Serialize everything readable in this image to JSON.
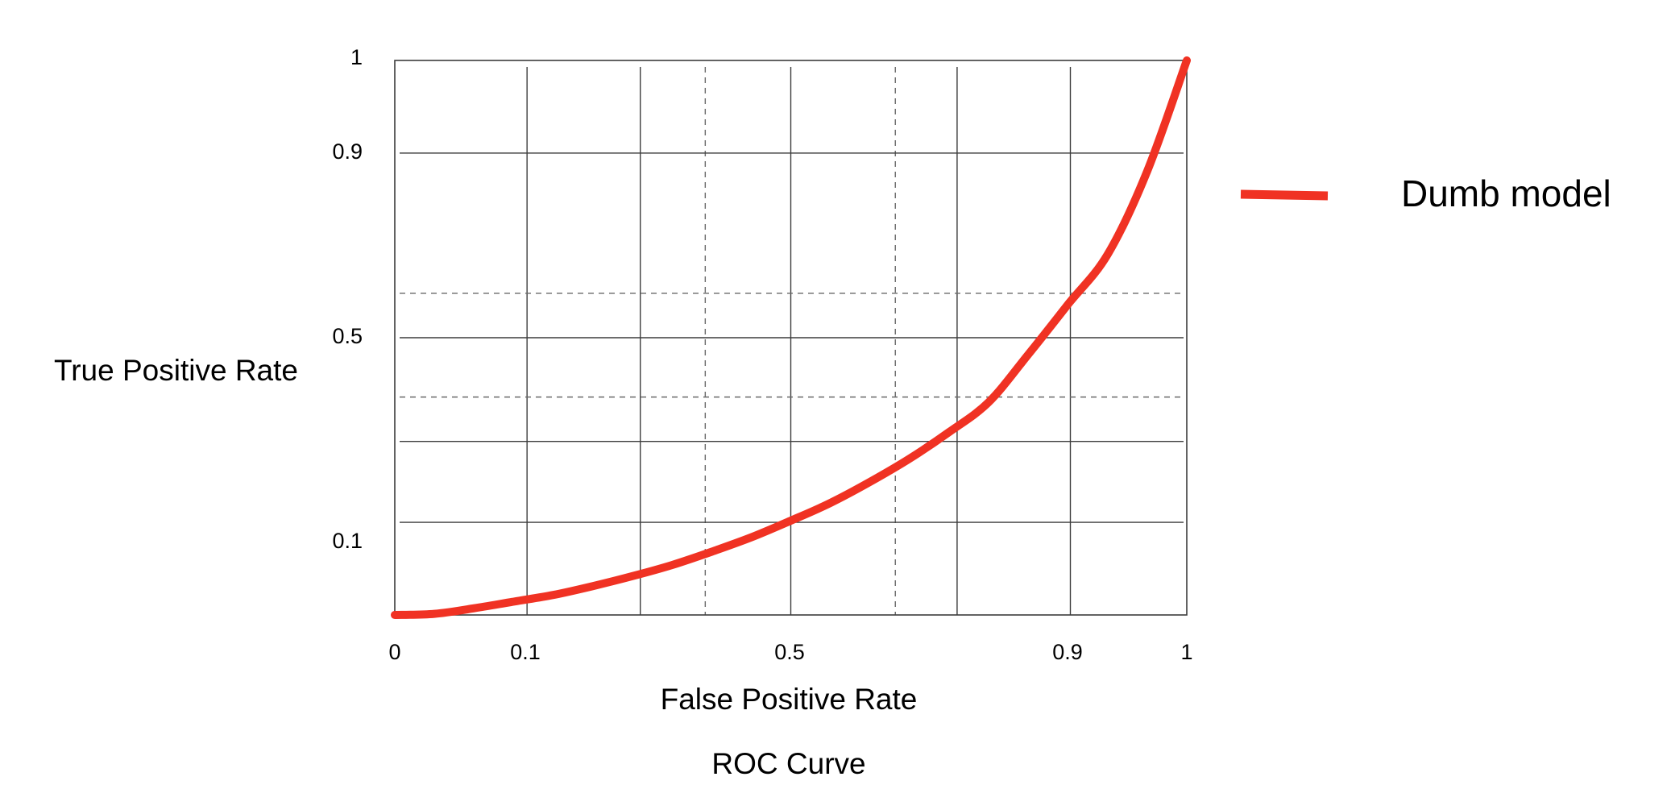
{
  "chart_data": {
    "type": "line",
    "title": "ROC Curve",
    "xlabel": "False Positive Rate",
    "ylabel": "True Positive Rate",
    "xlim": [
      0,
      1
    ],
    "ylim": [
      0,
      1
    ],
    "x_ticks": [
      {
        "value": 0,
        "label": "0"
      },
      {
        "value": 0.1,
        "label": "0.1"
      },
      {
        "value": 0.5,
        "label": "0.5"
      },
      {
        "value": 0.9,
        "label": "0.9"
      },
      {
        "value": 1,
        "label": "1"
      }
    ],
    "y_ticks": [
      {
        "value": 0.1,
        "label": "0.1"
      },
      {
        "value": 0.5,
        "label": "0.5"
      },
      {
        "value": 0.9,
        "label": "0.9"
      },
      {
        "value": 1,
        "label": "1"
      }
    ],
    "grid": true,
    "legend_position": "right",
    "series": [
      {
        "name": "Dumb model",
        "color": "#f03223",
        "x": [
          0,
          0.05,
          0.1,
          0.15,
          0.2,
          0.25,
          0.3,
          0.35,
          0.4,
          0.45,
          0.5,
          0.55,
          0.6,
          0.65,
          0.7,
          0.75,
          0.8,
          0.85,
          0.9,
          0.95,
          1
        ],
        "y": [
          0,
          0.002,
          0.012,
          0.024,
          0.036,
          0.052,
          0.07,
          0.09,
          0.114,
          0.14,
          0.17,
          0.202,
          0.24,
          0.282,
          0.33,
          0.384,
          0.47,
          0.56,
          0.65,
          0.8,
          1.0
        ]
      }
    ]
  }
}
